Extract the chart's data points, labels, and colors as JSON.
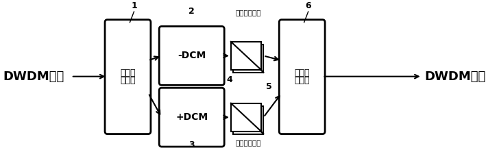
{
  "bg_color": "#ffffff",
  "input_label": "DWDM信号",
  "output_label": "DWDM信号",
  "splitter_line1": "红蓝带",
  "splitter_line2": "分波器",
  "combiner_line1": "红蓝带",
  "combiner_line2": "合波器",
  "dcm_upper_label": "-DCM",
  "dcm_lower_label": "+DCM",
  "atten_upper_label": "可调光衰减器",
  "atten_lower_label": "可调光衰减器",
  "num1": "1",
  "num2": "2",
  "num3": "3",
  "num4": "4",
  "num5": "5",
  "num6": "6"
}
